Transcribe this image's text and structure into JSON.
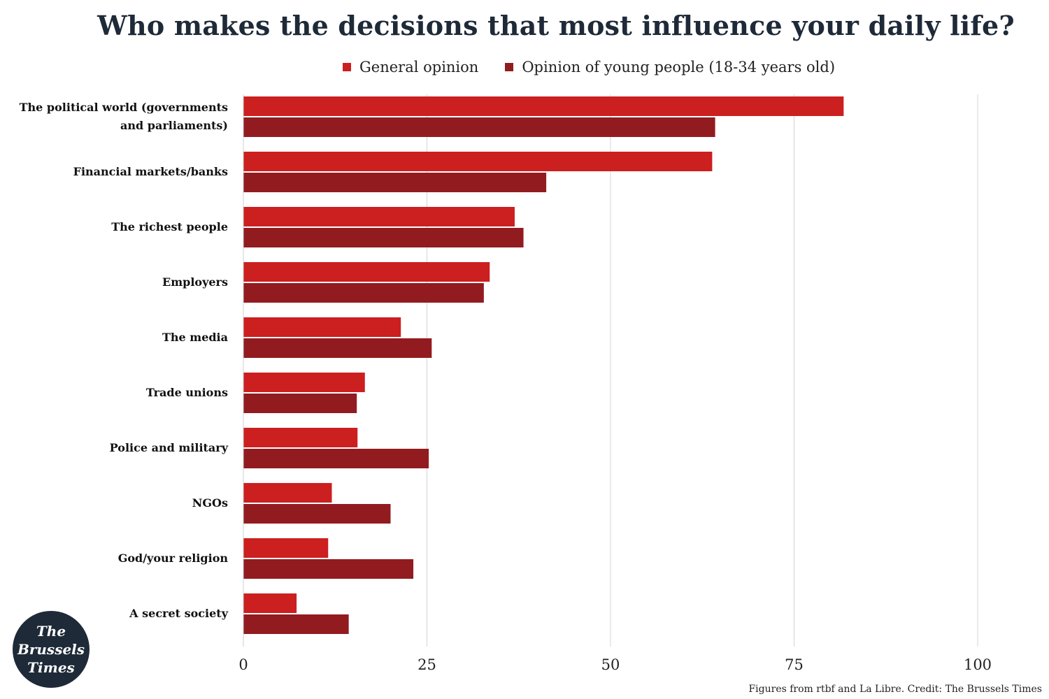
{
  "title": "Who makes the decisions that most influence your daily life?",
  "legend": [
    {
      "label": "General opinion",
      "color": "#cc1f20"
    },
    {
      "label": "Opinion of young people (18-34 years old)",
      "color": "#921b1f"
    }
  ],
  "source": "Figures from rtbf and La Libre. Credit: The Brussels Times",
  "logo": {
    "line1": "The",
    "line2": "Brussels",
    "line3": "Times"
  },
  "chart_data": {
    "type": "bar",
    "orientation": "horizontal",
    "title": "Who makes the decisions that most influence your daily life?",
    "categories": [
      "The political world (governments and parliaments)",
      "Financial markets/banks",
      "The richest people",
      "Employers",
      "The media",
      "Trade unions",
      "Police and military",
      "NGOs",
      "God/your religion",
      "A secret society"
    ],
    "category_lines": [
      [
        "The political world (governments",
        "and parliaments)"
      ],
      [
        "Financial markets/banks"
      ],
      [
        "The richest people"
      ],
      [
        "Employers"
      ],
      [
        "The media"
      ],
      [
        "Trade unions"
      ],
      [
        "Police and military"
      ],
      [
        "NGOs"
      ],
      [
        "God/your religion"
      ],
      [
        "A secret society"
      ]
    ],
    "series": [
      {
        "name": "General opinion",
        "color": "#cc1f20",
        "values": [
          81.7,
          63.8,
          36.9,
          33.5,
          21.4,
          16.5,
          15.5,
          12.0,
          11.5,
          7.2
        ]
      },
      {
        "name": "Opinion of young people (18-34 years old)",
        "color": "#921b1f",
        "values": [
          64.2,
          41.2,
          38.1,
          32.7,
          25.6,
          15.4,
          25.2,
          20.0,
          23.1,
          14.3
        ]
      }
    ],
    "xlim": [
      0,
      100
    ],
    "xticks": [
      0,
      25,
      50,
      75,
      100
    ],
    "grid": true,
    "legend_position": "top"
  }
}
